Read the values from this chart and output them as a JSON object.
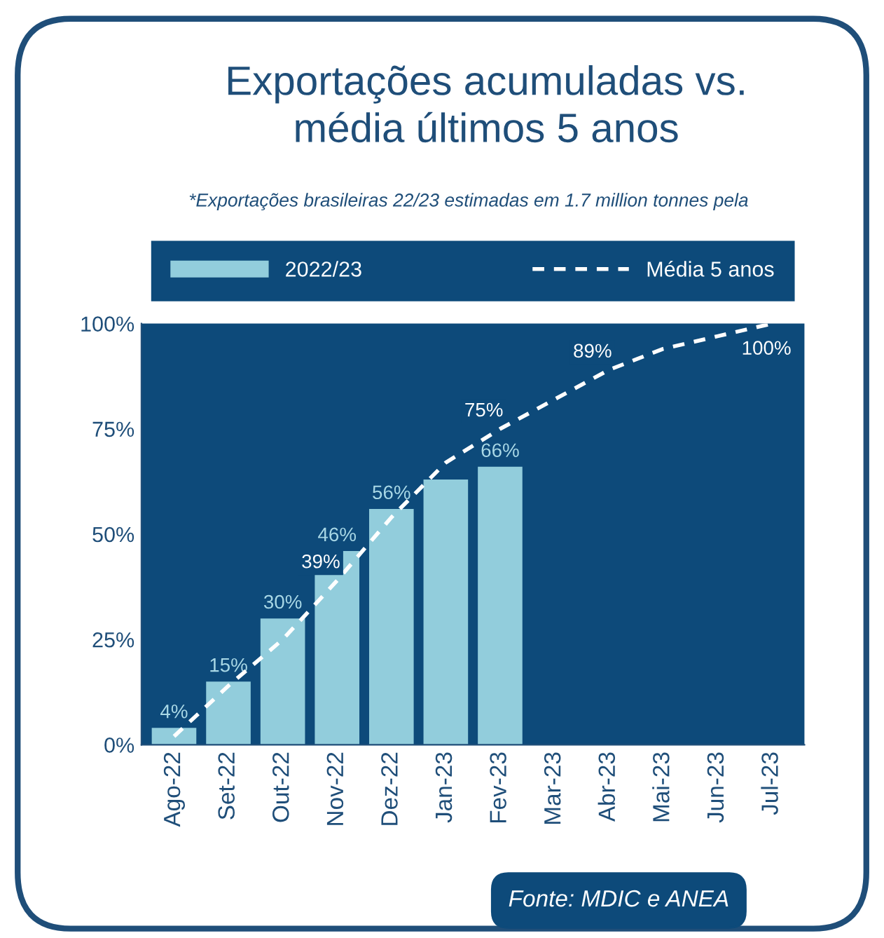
{
  "chart_data": {
    "type": "bar",
    "title": "Exportações acumuladas vs.\nmédia últimos 5 anos",
    "subtitle": "*Exportações brasileiras 22/23 estimadas em 1.7 million tonnes pela",
    "categories": [
      "Ago-22",
      "Set-22",
      "Out-22",
      "Nov-22",
      "Dez-22",
      "Jan-23",
      "Fev-23",
      "Mar-23",
      "Abr-23",
      "Mai-23",
      "Jun-23",
      "Jul-23"
    ],
    "series": [
      {
        "name": "2022/23",
        "color": "#92cddc",
        "values": [
          4,
          15,
          30,
          46,
          56,
          63,
          66,
          null,
          null,
          null,
          null,
          null
        ],
        "value_labels": [
          "4%",
          "15%",
          "30%",
          "46%",
          "56%",
          null,
          "66%",
          null,
          null,
          null,
          null,
          null
        ]
      },
      {
        "name": "Média 5 anos",
        "type": "line",
        "color": "#ffffff",
        "line_style": "dashed",
        "values": [
          2,
          14,
          25,
          39,
          54,
          67,
          75,
          82,
          89,
          94,
          97,
          100
        ],
        "value_labels": [
          null,
          null,
          null,
          "39%",
          null,
          null,
          "75%",
          null,
          "89%",
          null,
          null,
          "100%"
        ]
      }
    ],
    "ylim": [
      0,
      100
    ],
    "yticks": [
      {
        "value": 0,
        "label": "0%"
      },
      {
        "value": 25,
        "label": "25%"
      },
      {
        "value": 50,
        "label": "50%"
      },
      {
        "value": 75,
        "label": "75%"
      },
      {
        "value": 100,
        "label": "100%"
      }
    ],
    "grid": false,
    "legend": "top",
    "marker": "none",
    "annotations": [
      "Fonte: MDIC e ANEA"
    ]
  }
}
